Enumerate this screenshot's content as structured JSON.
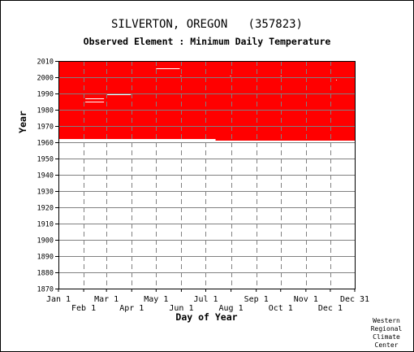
{
  "chart_data": {
    "type": "bar",
    "title": "SILVERTON, OREGON   (357823)",
    "subtitle": "Observed Element : Minimum Daily Temperature",
    "xlabel": "Day of Year",
    "ylabel": "Year",
    "ylim": [
      1870,
      2010
    ],
    "xlim": [
      1,
      365
    ],
    "grid": true,
    "y_ticks": [
      "1870",
      "1880",
      "1890",
      "1900",
      "1910",
      "1920",
      "1930",
      "1940",
      "1950",
      "1960",
      "1970",
      "1980",
      "1990",
      "2000",
      "2010"
    ],
    "x_ticks_top_row": [
      {
        "label": "Jan 1",
        "day": 1
      },
      {
        "label": "Mar 1",
        "day": 60
      },
      {
        "label": "May 1",
        "day": 121
      },
      {
        "label": "Jul 1",
        "day": 182
      },
      {
        "label": "Sep 1",
        "day": 244
      },
      {
        "label": "Nov 1",
        "day": 305
      },
      {
        "label": "Dec 31",
        "day": 365
      }
    ],
    "x_ticks_bottom_row": [
      {
        "label": "Feb 1",
        "day": 32
      },
      {
        "label": "Apr 1",
        "day": 91
      },
      {
        "label": "Jun 1",
        "day": 152
      },
      {
        "label": "Aug 1",
        "day": 213
      },
      {
        "label": "Oct 1",
        "day": 274
      },
      {
        "label": "Dec 1",
        "day": 335
      }
    ],
    "series": [
      {
        "color": "#ff0000",
        "data_coverage": {
          "day_start": 1,
          "day_end": 365,
          "year_start": 1961,
          "year_end": 2010
        },
        "missing": [
          {
            "day_start": 1,
            "day_end": 194,
            "year_start": 1961,
            "year_end": 1962
          },
          {
            "day_start": 34,
            "day_end": 57,
            "year_start": 1986.5,
            "year_end": 1987
          },
          {
            "day_start": 34,
            "day_end": 57,
            "year_start": 1984.5,
            "year_end": 1985
          },
          {
            "day_start": 61,
            "day_end": 90,
            "year_start": 1989,
            "year_end": 1989.5
          },
          {
            "day_start": 121,
            "day_end": 150,
            "year_start": 2005,
            "year_end": 2005.5
          },
          {
            "day_start": 151,
            "day_end": 152,
            "year_start": 2000.5,
            "year_end": 2001
          },
          {
            "day_start": 212,
            "day_end": 213,
            "year_start": 2000.5,
            "year_end": 2001
          },
          {
            "day_start": 274,
            "day_end": 275,
            "year_start": 2000.5,
            "year_end": 2001
          },
          {
            "day_start": 342,
            "day_end": 343,
            "year_start": 1998,
            "year_end": 1998.5
          }
        ]
      }
    ]
  },
  "credit_lines": [
    "Western",
    "Regional",
    "Climate",
    "Center"
  ],
  "colors": {
    "data": "#ff0000",
    "grid": "#808080",
    "axis": "#000000",
    "background": "#ffffff"
  }
}
